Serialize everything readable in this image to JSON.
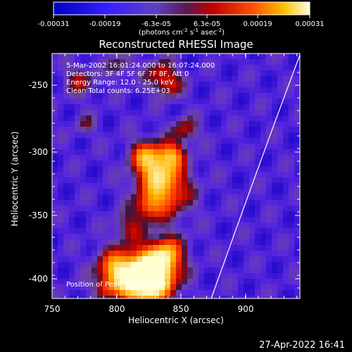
{
  "colorbar": {
    "ticks": [
      "-0.00031",
      "-0.00019",
      "-6.3e-05",
      "6.3e-05",
      "0.00019",
      "0.00031"
    ],
    "units_main": "(photons cm",
    "units_exp1": "-2",
    "units_mid": " s",
    "units_exp2": "-1",
    "units_mid2": " asec",
    "units_exp3": "-2",
    "units_end": ")",
    "min": -0.00031,
    "max": 0.00031
  },
  "image": {
    "title": "Reconstructed RHESSI Image",
    "info_lines": [
      "5-Mar-2002 16:01:24.000 to 16:07:24.000",
      "Detectors: 3F 4F 5F 6F 7F 8F, Att 0",
      "Energy Range: 12.0 - 25.0 keV",
      "Clean    Total counts: 6.25E+03"
    ],
    "peak_label": "Position of Peak = [844,-393]"
  },
  "axes": {
    "xlabel": "Heliocentric X (arcsec)",
    "ylabel": "Heliocentric Y (arcsec)",
    "xticks": [
      "750",
      "800",
      "850",
      "900"
    ],
    "yticks": [
      "-250",
      "-300",
      "-350",
      "-400"
    ]
  },
  "footer": {
    "timestamp": "27-Apr-2022 16:41"
  },
  "colors": {
    "background": "#000000",
    "low": "#0000ff",
    "mid_low": "#8a5ad0",
    "mid_high": "#c00000",
    "high": "#ffff90"
  }
}
